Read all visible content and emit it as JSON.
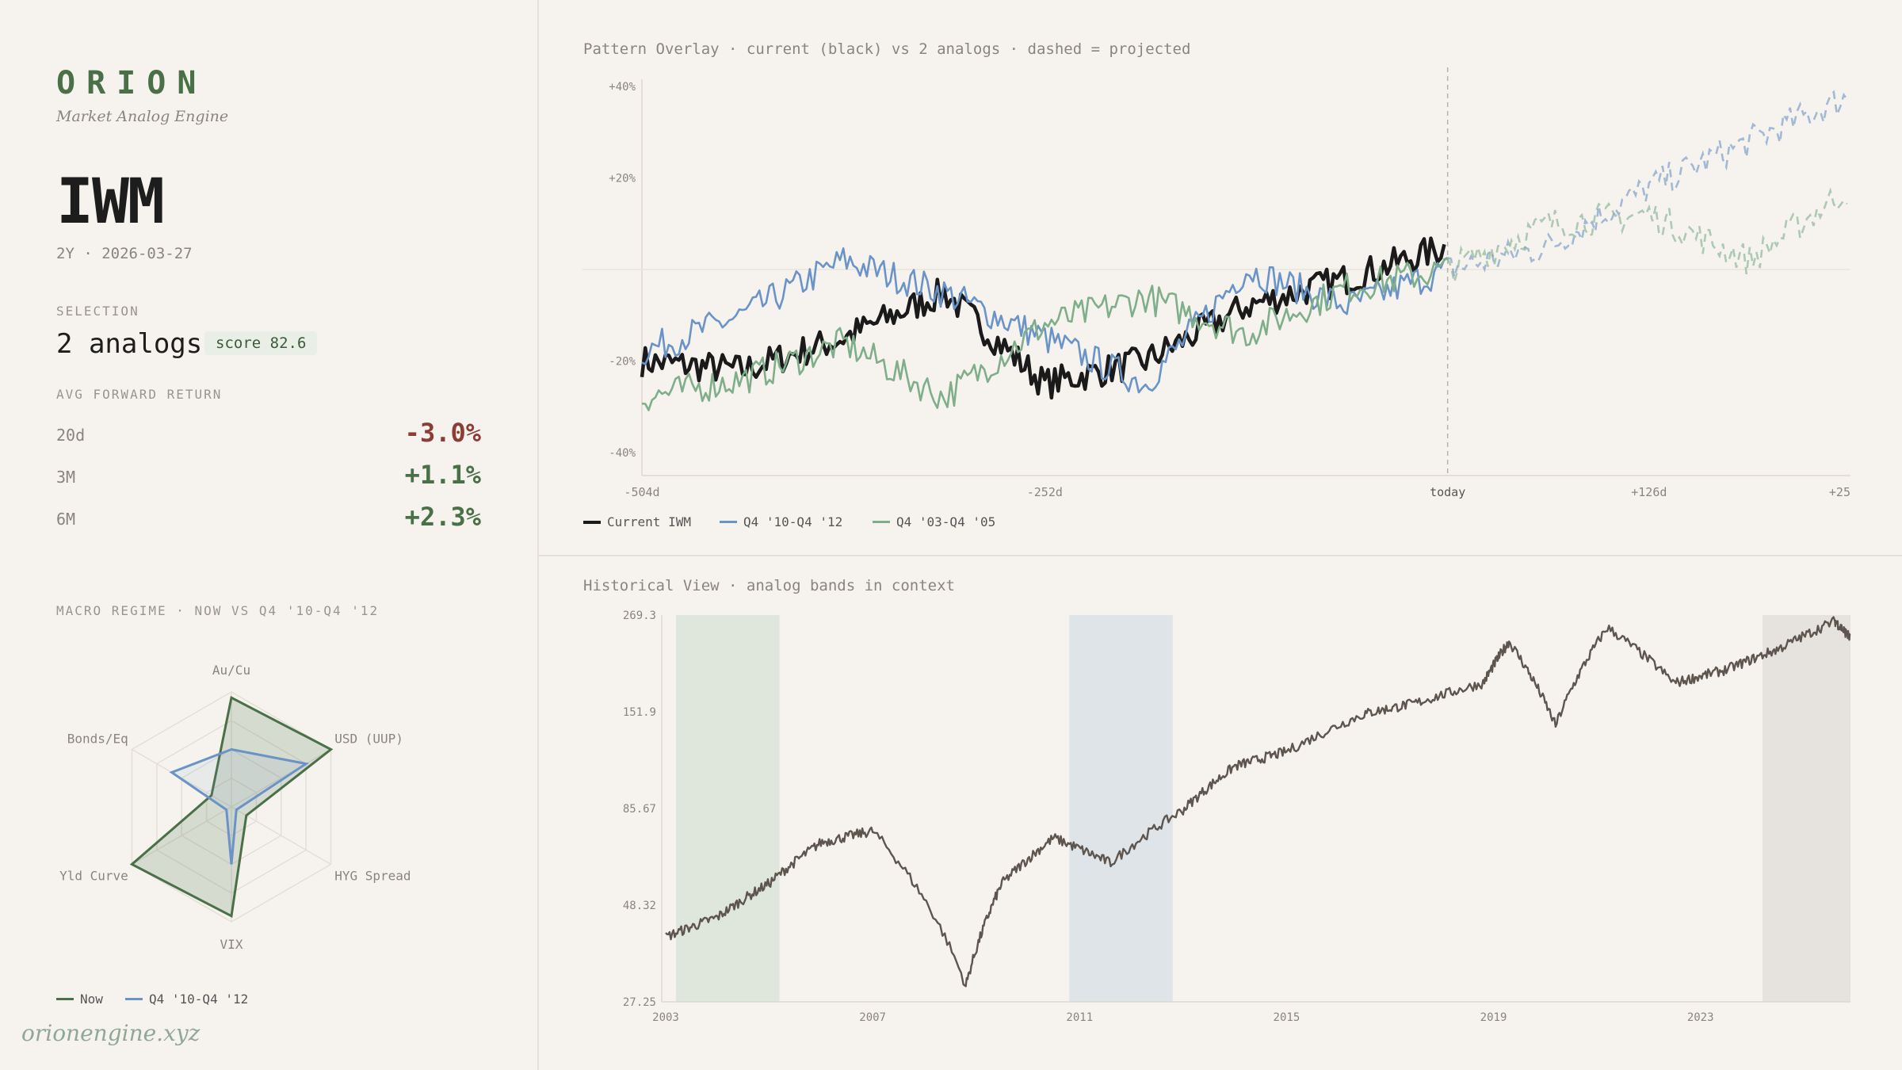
{
  "brand": {
    "name": "ORION",
    "tagline": "Market Analog Engine"
  },
  "ticker": {
    "symbol": "IWM",
    "meta": "2Y · 2026-03-27"
  },
  "selection": {
    "label": "SELECTION",
    "analogs": "2 analogs",
    "score": "score 82.6"
  },
  "forward_returns": {
    "label": "AVG FORWARD RETURN",
    "rows": [
      {
        "k": "20d",
        "v": "-3.0%"
      },
      {
        "k": "3M",
        "v": "+1.1%"
      },
      {
        "k": "6M",
        "v": "+2.3%"
      }
    ]
  },
  "macro": {
    "label": "MACRO REGIME · NOW VS Q4 '10-Q4 '12",
    "axes": [
      "Au/Cu",
      "USD (UUP)",
      "HYG Spread",
      "VIX",
      "Yld Curve",
      "Bonds/Eq"
    ],
    "now": [
      0.95,
      1.0,
      0.15,
      0.95,
      1.0,
      0.2
    ],
    "analog": [
      0.5,
      0.75,
      0.05,
      0.5,
      0.05,
      0.6
    ],
    "legend": {
      "now": "Now",
      "analog": "Q4 '10-Q4 '12"
    }
  },
  "colors": {
    "now": "#4a7048",
    "analog_blue": "#6a93c7",
    "analog_green": "#7fae8a",
    "current": "#1a1a1a",
    "price": "#5e564e"
  },
  "footer": "orionengine.xyz",
  "overlay": {
    "title": "Pattern Overlay · current (black) vs 2 analogs · dashed = projected",
    "y_ticks": [
      "+40%",
      "+20%",
      "-20%",
      "-40%"
    ],
    "x_ticks": [
      "-504d",
      "-252d",
      "today",
      "+126d",
      "+25"
    ],
    "legend": [
      "Current IWM",
      "Q4 '10-Q4 '12",
      "Q4 '03-Q4 '05"
    ]
  },
  "chart_data": [
    {
      "type": "line",
      "title": "Pattern Overlay · current (black) vs 2 analogs · dashed = projected",
      "x": [
        -504,
        -441,
        -378,
        -315,
        -252,
        -189,
        -126,
        -63,
        0,
        63,
        126,
        189,
        252
      ],
      "ylim": [
        -45,
        45
      ],
      "series": [
        {
          "name": "Current IWM",
          "values": [
            -20,
            -22,
            -15,
            -5,
            -25,
            -20,
            -8,
            -2,
            5,
            null,
            null,
            null,
            null
          ]
        },
        {
          "name": "Q4 '10-Q4 '12",
          "values": [
            -18,
            -10,
            2,
            -5,
            -15,
            -25,
            0,
            -8,
            0,
            5,
            18,
            28,
            38
          ]
        },
        {
          "name": "Q4 '03-Q4 '05",
          "values": [
            -28,
            -24,
            -16,
            -28,
            -12,
            -6,
            -14,
            -4,
            0,
            10,
            12,
            2,
            18
          ]
        }
      ]
    },
    {
      "type": "line",
      "title": "Historical View · analog bands in context",
      "y_ticks": [
        "269.3",
        "151.9",
        "85.67",
        "48.32",
        "27.25"
      ],
      "x_ticks": [
        "2003",
        "2007",
        "2011",
        "2015",
        "2019",
        "2023"
      ],
      "series": [
        {
          "name": "",
          "values": [
            40,
            45,
            55,
            70,
            75,
            30,
            55,
            72,
            62,
            85,
            110,
            120,
            150,
            160,
            180,
            230,
            140,
            250,
            180,
            195,
            220,
            260,
            235
          ]
        }
      ],
      "x": [
        2003,
        2004,
        2005,
        2006,
        2007,
        2008.8,
        2009.5,
        2010.5,
        2011.6,
        2013,
        2014,
        2015,
        2016.5,
        2017.5,
        2018.8,
        2019.3,
        2020.2,
        2021.2,
        2022.5,
        2023.5,
        2024.5,
        2025.6,
        2025.9
      ]
    }
  ],
  "history": {
    "title": "Historical View · analog bands in context",
    "y_ticks": [
      "269.3",
      "151.9",
      "85.67",
      "48.32",
      "27.25"
    ],
    "x_ticks": [
      "2003",
      "2007",
      "2011",
      "2015",
      "2019",
      "2023"
    ],
    "bands": [
      {
        "start": 2003.2,
        "end": 2005.2,
        "color": "#dfe7dd"
      },
      {
        "start": 2010.8,
        "end": 2012.8,
        "color": "#dfe4e9"
      },
      {
        "start": 2024.2,
        "end": 2026.2,
        "color": "#e6e3de"
      }
    ]
  }
}
